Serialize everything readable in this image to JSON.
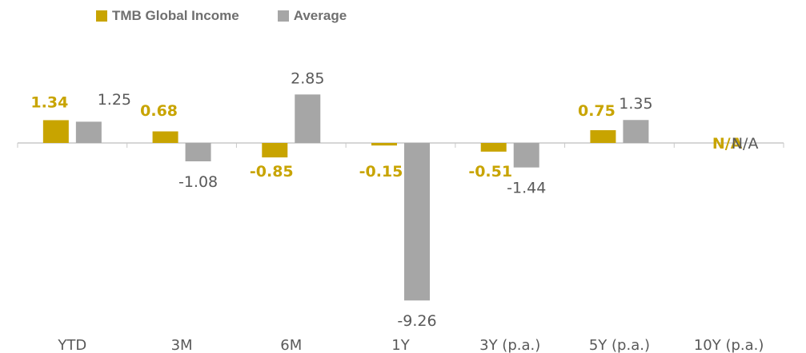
{
  "chart_data": {
    "type": "bar",
    "categories": [
      "YTD",
      "3M",
      "6M",
      "1Y",
      "3Y (p.a.)",
      "5Y (p.a.)",
      "10Y (p.a.)"
    ],
    "series": [
      {
        "name": "TMB Global Income",
        "color": "#c8a400",
        "values": [
          1.34,
          0.68,
          -0.85,
          -0.15,
          -0.51,
          0.75,
          null
        ],
        "labels": [
          "1.34",
          "0.68",
          "-0.85",
          "-0.15",
          "-0.51",
          "0.75",
          "N/A"
        ]
      },
      {
        "name": "Average",
        "color": "#a6a6a6",
        "values": [
          1.25,
          -1.08,
          2.85,
          -9.26,
          -1.44,
          1.35,
          null
        ],
        "labels": [
          "1.25",
          "-1.08",
          "2.85",
          "-9.26",
          "-1.44",
          "1.35",
          "N/A"
        ]
      }
    ],
    "legend_position": "top-left",
    "grid": false
  }
}
